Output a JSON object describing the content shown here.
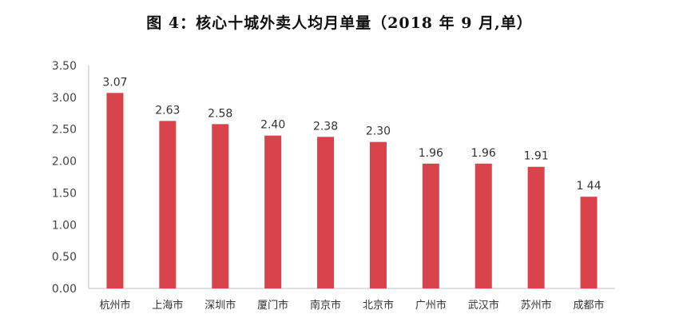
{
  "chart_data": {
    "type": "bar",
    "title": "图 4：核心十城外卖人均月单量（2018 年 9 月,单）",
    "categories": [
      "杭州市",
      "上海市",
      "深圳市",
      "厦门市",
      "南京市",
      "北京市",
      "广州市",
      "武汉市",
      "苏州市",
      "成都市"
    ],
    "values": [
      3.07,
      2.63,
      2.58,
      2.4,
      2.38,
      2.3,
      1.96,
      1.96,
      1.91,
      1.44
    ],
    "data_labels": [
      "3.07",
      "2.63",
      "2.58",
      "2.40",
      "2.38",
      "2.30",
      "1.96",
      "1.96",
      "1.91",
      "1 44"
    ],
    "ylim": [
      0,
      3.5
    ],
    "yticks": [
      "0.00",
      "0.50",
      "1.00",
      "1.50",
      "2.00",
      "2.50",
      "3.00",
      "3.50"
    ],
    "xlabel": "",
    "ylabel": "",
    "grid": false,
    "bar_color": "#d9434b"
  }
}
